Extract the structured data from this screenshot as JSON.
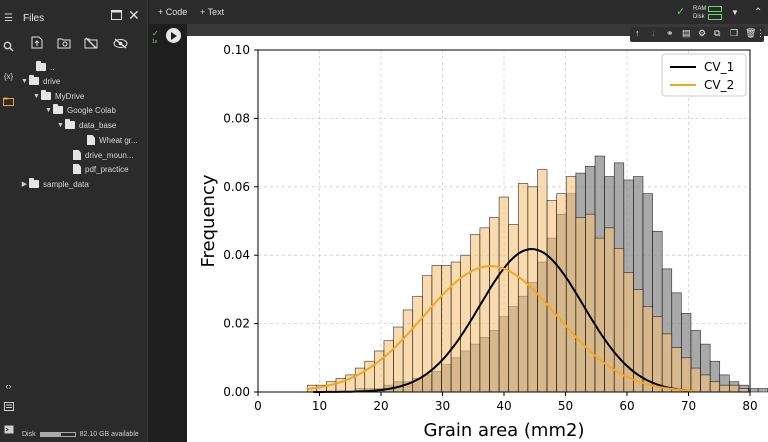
{
  "files_panel": {
    "title": "Files",
    "tree": [
      {
        "label": "..",
        "type": "folder-up",
        "depth": 0
      },
      {
        "label": "drive",
        "type": "folder",
        "depth": 0,
        "expanded": true
      },
      {
        "label": "MyDrive",
        "type": "folder",
        "depth": 1,
        "expanded": true
      },
      {
        "label": "Google Colab",
        "type": "folder",
        "depth": 2,
        "expanded": true
      },
      {
        "label": "data_base",
        "type": "folder",
        "depth": 3,
        "expanded": true
      },
      {
        "label": "Wheat gr...",
        "type": "file",
        "depth": 4
      },
      {
        "label": "drive_moun...",
        "type": "file",
        "depth": 3
      },
      {
        "label": "pdf_practice",
        "type": "file",
        "depth": 3
      },
      {
        "label": "sample_data",
        "type": "folder",
        "depth": 0,
        "expanded": false
      }
    ],
    "disk_label": "Disk",
    "disk_available": "82.10 GB available",
    "disk_used_fraction": 0.6
  },
  "toolbar": {
    "code_label": "+ Code",
    "text_label": "+ Text",
    "ram_label": "RAM",
    "disk_label": "Disk"
  },
  "cell": {
    "exec_time": "1s"
  },
  "chart_data": {
    "type": "bar",
    "xlabel": "Grain area (mm2)",
    "ylabel": "Frequency",
    "xlim": [
      0,
      80
    ],
    "ylim": [
      0,
      0.1
    ],
    "xticks": [
      "0",
      "10",
      "20",
      "30",
      "40",
      "50",
      "60",
      "70",
      "80"
    ],
    "yticks": [
      "0.00",
      "0.02",
      "0.04",
      "0.06",
      "0.08",
      "0.10"
    ],
    "grid": true,
    "legend_position": "top-right",
    "series": [
      {
        "name": "CV_1",
        "color": "#000000",
        "bar_color": "#8c8c8c",
        "bin_start": 8,
        "bin_width": 1.56,
        "hist": [
          0,
          0,
          0,
          0,
          0,
          0.001,
          0.001,
          0.001,
          0.002,
          0.003,
          0.003,
          0.004,
          0.005,
          0.006,
          0.008,
          0.01,
          0.012,
          0.014,
          0.016,
          0.018,
          0.022,
          0.025,
          0.028,
          0.032,
          0.038,
          0.045,
          0.052,
          0.058,
          0.064,
          0.066,
          0.069,
          0.063,
          0.067,
          0.062,
          0.063,
          0.058,
          0.047,
          0.036,
          0.029,
          0.023,
          0.018,
          0.014,
          0.009,
          0.005,
          0.003,
          0.002,
          0.001,
          0.001,
          0,
          0,
          0
        ],
        "curve": {
          "mean": 44.5,
          "peak": 0.0418,
          "sd": 8.4,
          "xmin": 9,
          "xmax": 71
        }
      },
      {
        "name": "CV_2",
        "color": "#f5a623",
        "bar_color": "#f5c37a",
        "bin_start": 8,
        "bin_width": 1.56,
        "hist": [
          0.002,
          0.002,
          0.003,
          0.004,
          0.005,
          0.007,
          0.009,
          0.012,
          0.015,
          0.019,
          0.024,
          0.028,
          0.034,
          0.037,
          0.037,
          0.038,
          0.04,
          0.046,
          0.048,
          0.051,
          0.057,
          0.049,
          0.061,
          0.06,
          0.065,
          0.056,
          0.058,
          0.063,
          0.051,
          0.052,
          0.045,
          0.048,
          0.042,
          0.035,
          0.03,
          0.025,
          0.022,
          0.017,
          0.013,
          0.01,
          0.007,
          0.005,
          0.003,
          0.002,
          0.002,
          0.001,
          0,
          0,
          0,
          0,
          0
        ],
        "curve": {
          "mean": 37.8,
          "peak": 0.0368,
          "sd": 10.8,
          "xmin": 8,
          "xmax": 71
        }
      }
    ]
  }
}
